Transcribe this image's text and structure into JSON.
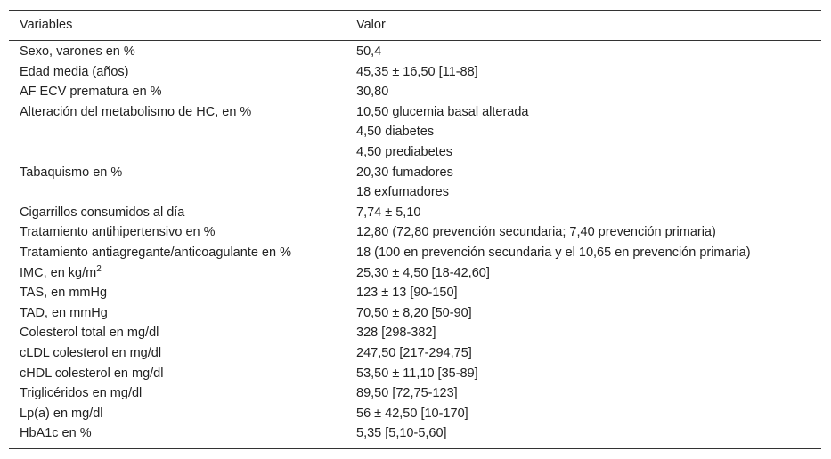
{
  "table": {
    "header": [
      "Variables",
      "Valor"
    ],
    "rows": [
      {
        "variable": "Sexo, varones en %",
        "value": [
          "50,4"
        ]
      },
      {
        "variable": "Edad media (años)",
        "value": [
          "45,35 ± 16,50 [11-88]"
        ]
      },
      {
        "variable": "AF ECV prematura en %",
        "value": [
          "30,80"
        ]
      },
      {
        "variable": "Alteración del metabolismo de HC, en %",
        "value": [
          "10,50 glucemia basal alterada",
          "4,50 diabetes",
          "4,50 prediabetes"
        ]
      },
      {
        "variable": "Tabaquismo en %",
        "value": [
          "20,30 fumadores",
          "18 exfumadores"
        ]
      },
      {
        "variable": "Cigarrillos consumidos al día",
        "value": [
          "7,74 ± 5,10"
        ]
      },
      {
        "variable": "Tratamiento antihipertensivo en %",
        "value": [
          "12,80 (72,80 prevención secundaria; 7,40 prevención primaria)"
        ]
      },
      {
        "variable": "Tratamiento antiagregante/anticoagulante en %",
        "value": [
          "18 (100 en prevención secundaria y el 10,65 en prevención primaria)"
        ]
      },
      {
        "variable": "IMC, en kg/m",
        "variable_sup": "2",
        "value": [
          "25,30 ± 4,50 [18-42,60]"
        ]
      },
      {
        "variable": "TAS, en mmHg",
        "value": [
          "123 ± 13 [90-150]"
        ]
      },
      {
        "variable": "TAD, en mmHg",
        "value": [
          "70,50 ± 8,20 [50-90]"
        ]
      },
      {
        "variable": "Colesterol total en mg/dl",
        "value": [
          "328 [298-382]"
        ]
      },
      {
        "variable": "cLDL colesterol en mg/dl",
        "value": [
          "247,50 [217-294,75]"
        ]
      },
      {
        "variable": "cHDL colesterol en mg/dl",
        "value": [
          "53,50 ± 11,10 [35-89]"
        ]
      },
      {
        "variable": "Triglicéridos en mg/dl",
        "value": [
          "89,50 [72,75-123]"
        ]
      },
      {
        "variable": "Lp(a) en mg/dl",
        "value": [
          "56 ± 42,50 [10-170]"
        ]
      },
      {
        "variable": "HbA1c en %",
        "value": [
          "5,35 [5,10-5,60]"
        ]
      }
    ]
  }
}
